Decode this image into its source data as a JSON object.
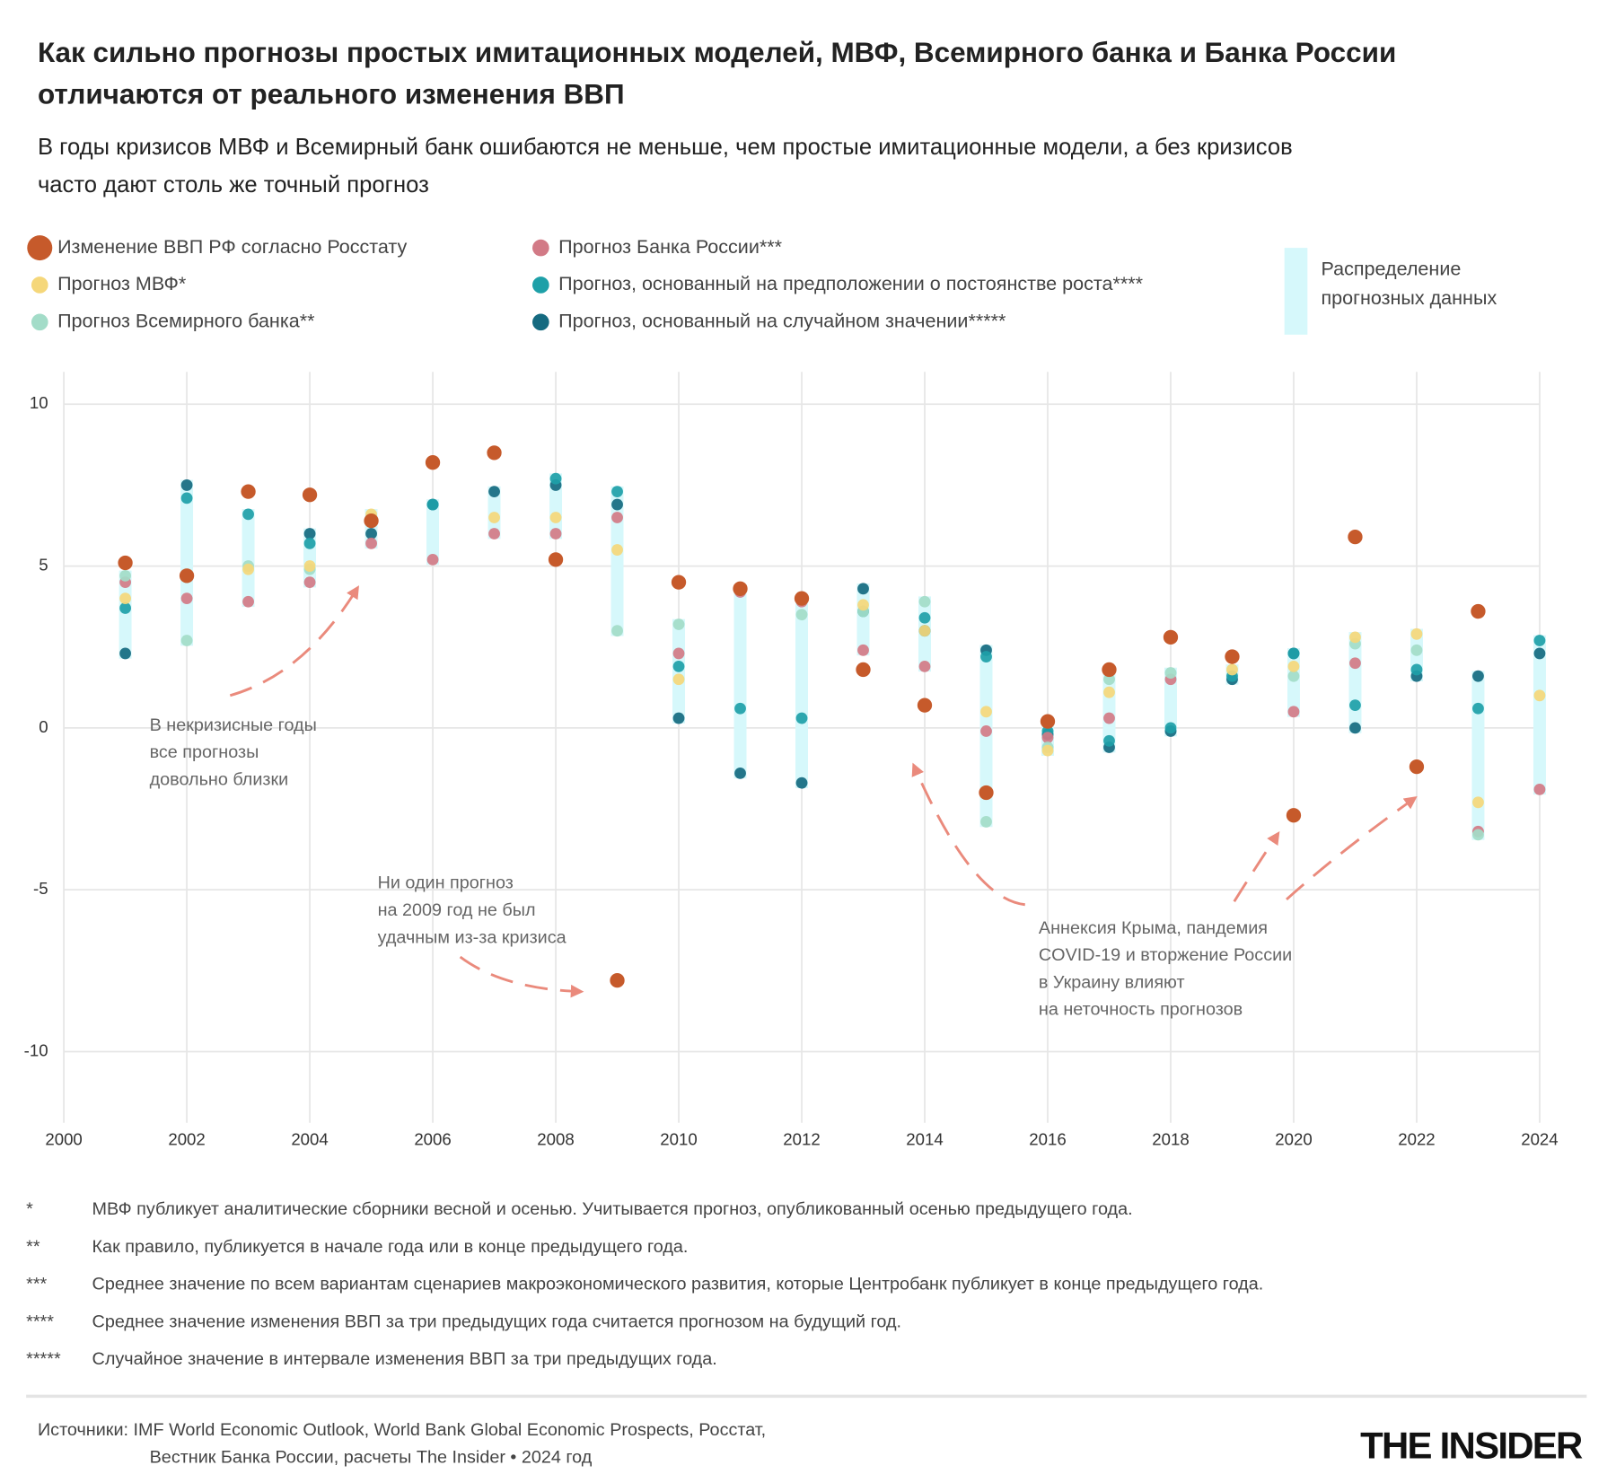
{
  "chart_data": {
    "type": "scatter",
    "title": [
      "Как сильно прогнозы простых имитационных моделей, МВФ, Всемирного банка и Банка России",
      "отличаются от реального изменения ВВП"
    ],
    "subtitle": [
      "В годы кризисов МВФ и Всемирный банк ошибаются не меньше, чем простые имитационные модели, а без кризисов",
      "часто дают столь же точный прогноз"
    ],
    "distribution_label": [
      "Распределение",
      "прогнозных данных"
    ],
    "distribution_color": "#d6f8fb",
    "x": [
      2001,
      2002,
      2003,
      2004,
      2005,
      2006,
      2007,
      2008,
      2009,
      2010,
      2011,
      2012,
      2013,
      2014,
      2015,
      2016,
      2017,
      2018,
      2019,
      2020,
      2021,
      2022,
      2023,
      2024
    ],
    "series": [
      {
        "name": "Изменение ВВП РФ согласно Росстату",
        "color": "#c65a2b",
        "values": [
          5.1,
          4.7,
          7.3,
          7.2,
          6.4,
          8.2,
          8.5,
          5.2,
          -7.8,
          4.5,
          4.3,
          4.0,
          1.8,
          0.7,
          -2.0,
          0.2,
          1.8,
          2.8,
          2.2,
          -2.7,
          5.9,
          -1.2,
          3.6,
          null
        ]
      },
      {
        "name": "Прогноз МВФ*",
        "color": "#f5d77a",
        "values": [
          4.0,
          null,
          4.9,
          5.0,
          6.6,
          null,
          6.5,
          6.5,
          5.5,
          1.5,
          null,
          null,
          3.8,
          3.0,
          0.5,
          -0.7,
          1.1,
          null,
          1.8,
          1.9,
          2.8,
          2.9,
          -2.3,
          1.0
        ]
      },
      {
        "name": "Прогноз Всемирного банка**",
        "color": "#a3dcc8",
        "values": [
          4.7,
          2.7,
          5.0,
          4.9,
          null,
          null,
          null,
          null,
          3.0,
          3.2,
          null,
          3.5,
          3.6,
          3.9,
          -2.9,
          -0.6,
          1.5,
          1.7,
          null,
          1.6,
          2.6,
          2.4,
          -3.3,
          null
        ]
      },
      {
        "name": "Прогноз Банка России***",
        "color": "#d27a86",
        "values": [
          4.5,
          4.0,
          3.9,
          4.5,
          5.7,
          5.2,
          6.0,
          6.0,
          6.5,
          2.3,
          4.2,
          3.9,
          2.4,
          1.9,
          -0.1,
          -0.3,
          0.3,
          1.5,
          null,
          0.5,
          2.0,
          null,
          -3.2,
          -1.9
        ]
      },
      {
        "name": "Прогноз, основанный на предположении о постоянстве роста****",
        "color": "#1ea0a8",
        "values": [
          3.7,
          7.1,
          6.6,
          5.7,
          null,
          6.9,
          null,
          7.7,
          7.3,
          1.9,
          0.6,
          0.3,
          3.6,
          3.4,
          2.2,
          -0.1,
          -0.4,
          0.0,
          1.6,
          2.3,
          0.7,
          1.8,
          0.6,
          2.7
        ]
      },
      {
        "name": "Прогноз, основанный на случайном значении*****",
        "color": "#156a80",
        "values": [
          2.3,
          7.5,
          null,
          6.0,
          6.0,
          6.9,
          7.3,
          7.5,
          6.9,
          0.3,
          -1.4,
          -1.7,
          4.3,
          3.0,
          2.4,
          -0.2,
          -0.6,
          -0.1,
          1.5,
          2.3,
          0.0,
          1.6,
          1.6,
          2.3
        ]
      }
    ],
    "xlim": [
      2000,
      2024
    ],
    "ylim": [
      -12.2,
      11
    ],
    "xticks": [
      2000,
      2002,
      2004,
      2006,
      2008,
      2010,
      2012,
      2014,
      2016,
      2018,
      2020,
      2022,
      2024
    ],
    "yticks": [
      -10,
      -5,
      0,
      5,
      10
    ],
    "grid": true,
    "annotations": [
      [
        "В некризисные годы",
        "все прогнозы",
        "довольно близки"
      ],
      [
        "Ни один прогноз",
        "на 2009 год не был",
        "удачным из-за кризиса"
      ],
      [
        "Аннексия Крыма, пандемия",
        "COVID-19 и вторжение России",
        "в Украину влияют",
        "на неточность прогнозов"
      ]
    ]
  },
  "footnotes": [
    {
      "mark": "*",
      "text": "МВФ публикует аналитические сборники весной и осенью. Учитывается прогноз, опубликованный осенью предыдущего года."
    },
    {
      "mark": "**",
      "text": "Как правило, публикуется в начале года или в конце предыдущего года."
    },
    {
      "mark": "***",
      "text": "Среднее значение по всем вариантам сценариев макроэкономического развития, которые Центробанк публикует в конце предыдущего года."
    },
    {
      "mark": "****",
      "text": "Среднее значение изменения ВВП за три предыдущих года считается прогнозом на будущий год."
    },
    {
      "mark": "*****",
      "text": "Случайное значение в интервале изменения ВВП за три предыдущих года."
    }
  ],
  "sources": [
    "Источники: IMF World Economic Outlook, World Bank Global Economic Prospects, Росстат,",
    "Вестник Банка России, расчеты The Insider • 2024 год"
  ],
  "brand": "THE INSIDER"
}
